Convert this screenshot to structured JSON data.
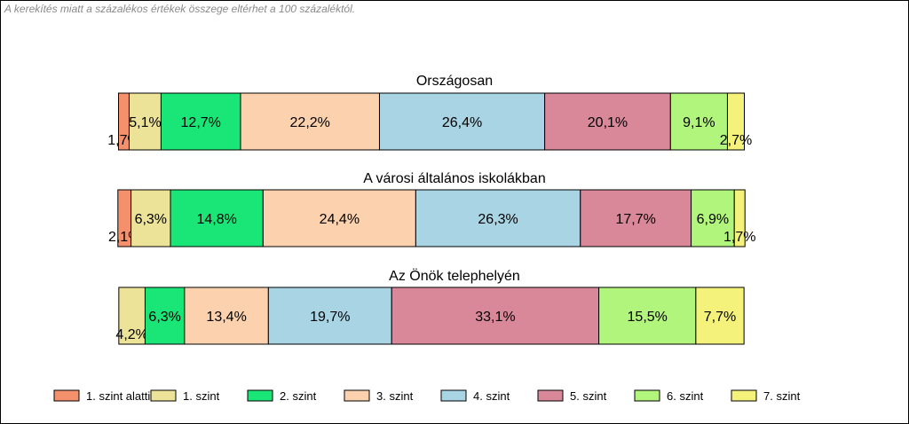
{
  "note": "A kerekítés miatt a  százalékos értékek összege eltérhet a 100 százaléktól.",
  "chart_data": {
    "type": "bar",
    "stacked": true,
    "orientation": "horizontal",
    "centered": true,
    "categories": [
      "Országosan",
      "A városi általános iskolákban",
      "Az Önök telephelyén"
    ],
    "series": [
      {
        "name": "1. szint alatti",
        "color": "#f4906b",
        "values": [
          1.7,
          2.1,
          0
        ],
        "labels": [
          "1,7%",
          "2,1%",
          ""
        ]
      },
      {
        "name": "1. szint",
        "color": "#ece398",
        "values": [
          5.1,
          6.3,
          4.2
        ],
        "labels": [
          "5,1%",
          "6,3%",
          "4,2%"
        ]
      },
      {
        "name": "2. szint",
        "color": "#19e676",
        "values": [
          12.7,
          14.8,
          6.3
        ],
        "labels": [
          "12,7%",
          "14,8%",
          "6,3%"
        ]
      },
      {
        "name": "3. szint",
        "color": "#fcd1ae",
        "values": [
          22.2,
          24.4,
          13.4
        ],
        "labels": [
          "22,2%",
          "24,4%",
          "13,4%"
        ]
      },
      {
        "name": "4. szint",
        "color": "#a8d4e4",
        "values": [
          26.4,
          26.3,
          19.7
        ],
        "labels": [
          "26,4%",
          "26,3%",
          "19,7%"
        ]
      },
      {
        "name": "5. szint",
        "color": "#d9889a",
        "values": [
          20.1,
          17.7,
          33.1
        ],
        "labels": [
          "20,1%",
          "17,7%",
          "33,1%"
        ]
      },
      {
        "name": "6. szint",
        "color": "#b2f57c",
        "values": [
          9.1,
          6.9,
          15.5
        ],
        "labels": [
          "9,1%",
          "6,9%",
          "15,5%"
        ]
      },
      {
        "name": "7. szint",
        "color": "#f4f27a",
        "values": [
          2.7,
          1.7,
          7.7
        ],
        "labels": [
          "2,7%",
          "1,7%",
          "7,7%"
        ]
      }
    ],
    "legend_position": "bottom",
    "grid": false
  }
}
